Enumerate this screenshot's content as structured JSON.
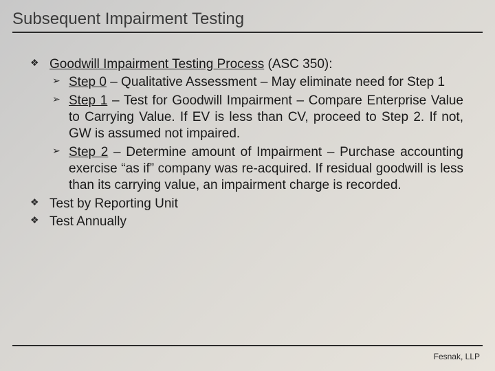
{
  "slide": {
    "title": "Subsequent Impairment Testing",
    "colors": {
      "text": "#1a1a1a",
      "title": "#3a3a3a",
      "rule": "#2a2a2a",
      "bg_gradient_from": "#c8c8c8",
      "bg_gradient_to": "#e8e4dc"
    },
    "fonts": {
      "title_size_pt": 18,
      "body_size_pt": 14
    },
    "bullets": [
      {
        "lead_underlined": "Goodwill Impairment Testing Process",
        "lead_tail": " (ASC 350):",
        "sub": [
          {
            "label": "Step 0",
            "text": " – Qualitative Assessment – May eliminate need for Step 1"
          },
          {
            "label": "Step 1",
            "text": " – Test for Goodwill Impairment – Compare Enterprise Value to Carrying Value. If EV is less than CV, proceed to Step 2.  If not, GW is assumed not impaired."
          },
          {
            "label": "Step 2",
            "text": " – Determine amount of Impairment – Purchase accounting exercise “as if” company was re-acquired.  If residual goodwill is less than its carrying value, an impairment charge is recorded."
          }
        ]
      },
      {
        "text": "Test by Reporting Unit"
      },
      {
        "text": "Test Annually"
      }
    ],
    "footer": "Fesnak, LLP"
  }
}
